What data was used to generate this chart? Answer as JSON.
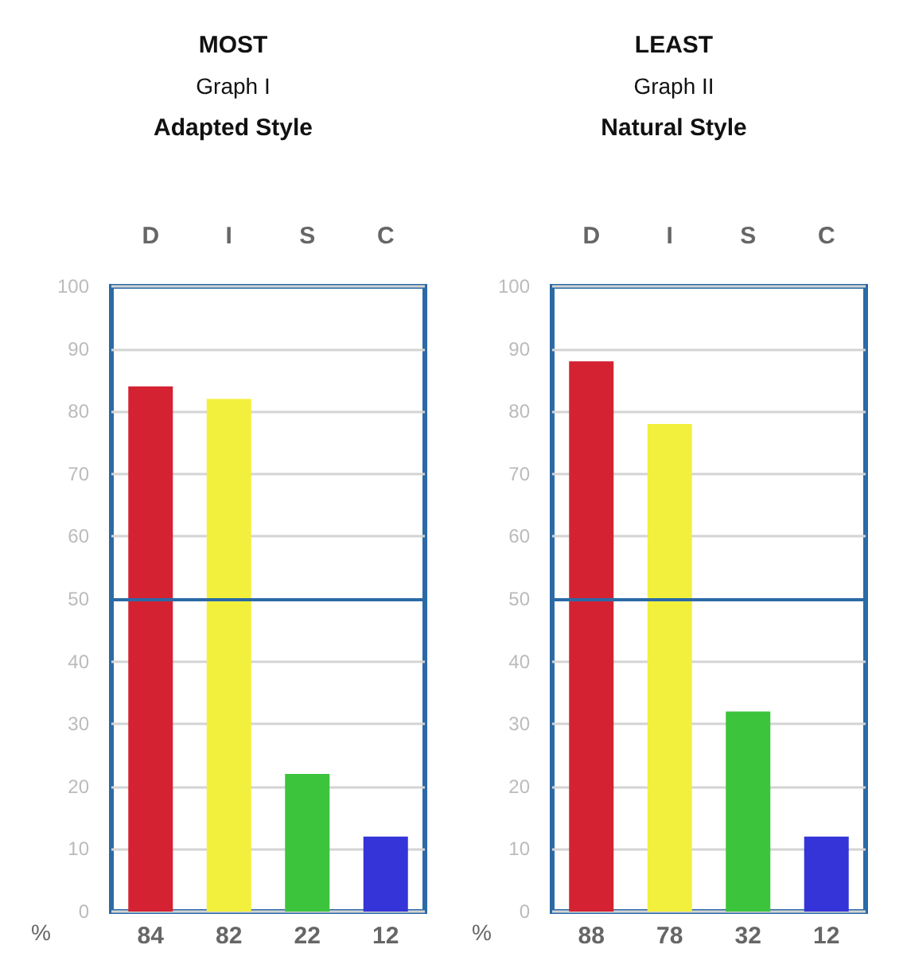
{
  "chart_data": [
    {
      "type": "bar",
      "title": "MOST",
      "subtitle": "Graph I",
      "annotations": [
        "Adapted Style"
      ],
      "ylabel": "%",
      "categories": [
        "D",
        "I",
        "S",
        "C"
      ],
      "values": [
        84,
        82,
        22,
        12
      ],
      "colors": [
        "#d42232",
        "#f2f03c",
        "#3cc43c",
        "#3434d8"
      ],
      "ylim": [
        0,
        100
      ],
      "yticks": [
        0,
        10,
        20,
        30,
        40,
        50,
        60,
        70,
        80,
        90,
        100
      ],
      "grid": "y",
      "data_labels": true,
      "ref_lines": [
        {
          "axis": "y",
          "value": 50,
          "color": "#2b6aa6"
        }
      ]
    },
    {
      "type": "bar",
      "title": "LEAST",
      "subtitle": "Graph II",
      "annotations": [
        "Natural Style"
      ],
      "ylabel": "%",
      "categories": [
        "D",
        "I",
        "S",
        "C"
      ],
      "values": [
        88,
        78,
        32,
        12
      ],
      "colors": [
        "#d42232",
        "#f2f03c",
        "#3cc43c",
        "#3434d8"
      ],
      "ylim": [
        0,
        100
      ],
      "yticks": [
        0,
        10,
        20,
        30,
        40,
        50,
        60,
        70,
        80,
        90,
        100
      ],
      "grid": "y",
      "data_labels": true,
      "ref_lines": [
        {
          "axis": "y",
          "value": 50,
          "color": "#2b6aa6"
        }
      ]
    }
  ]
}
